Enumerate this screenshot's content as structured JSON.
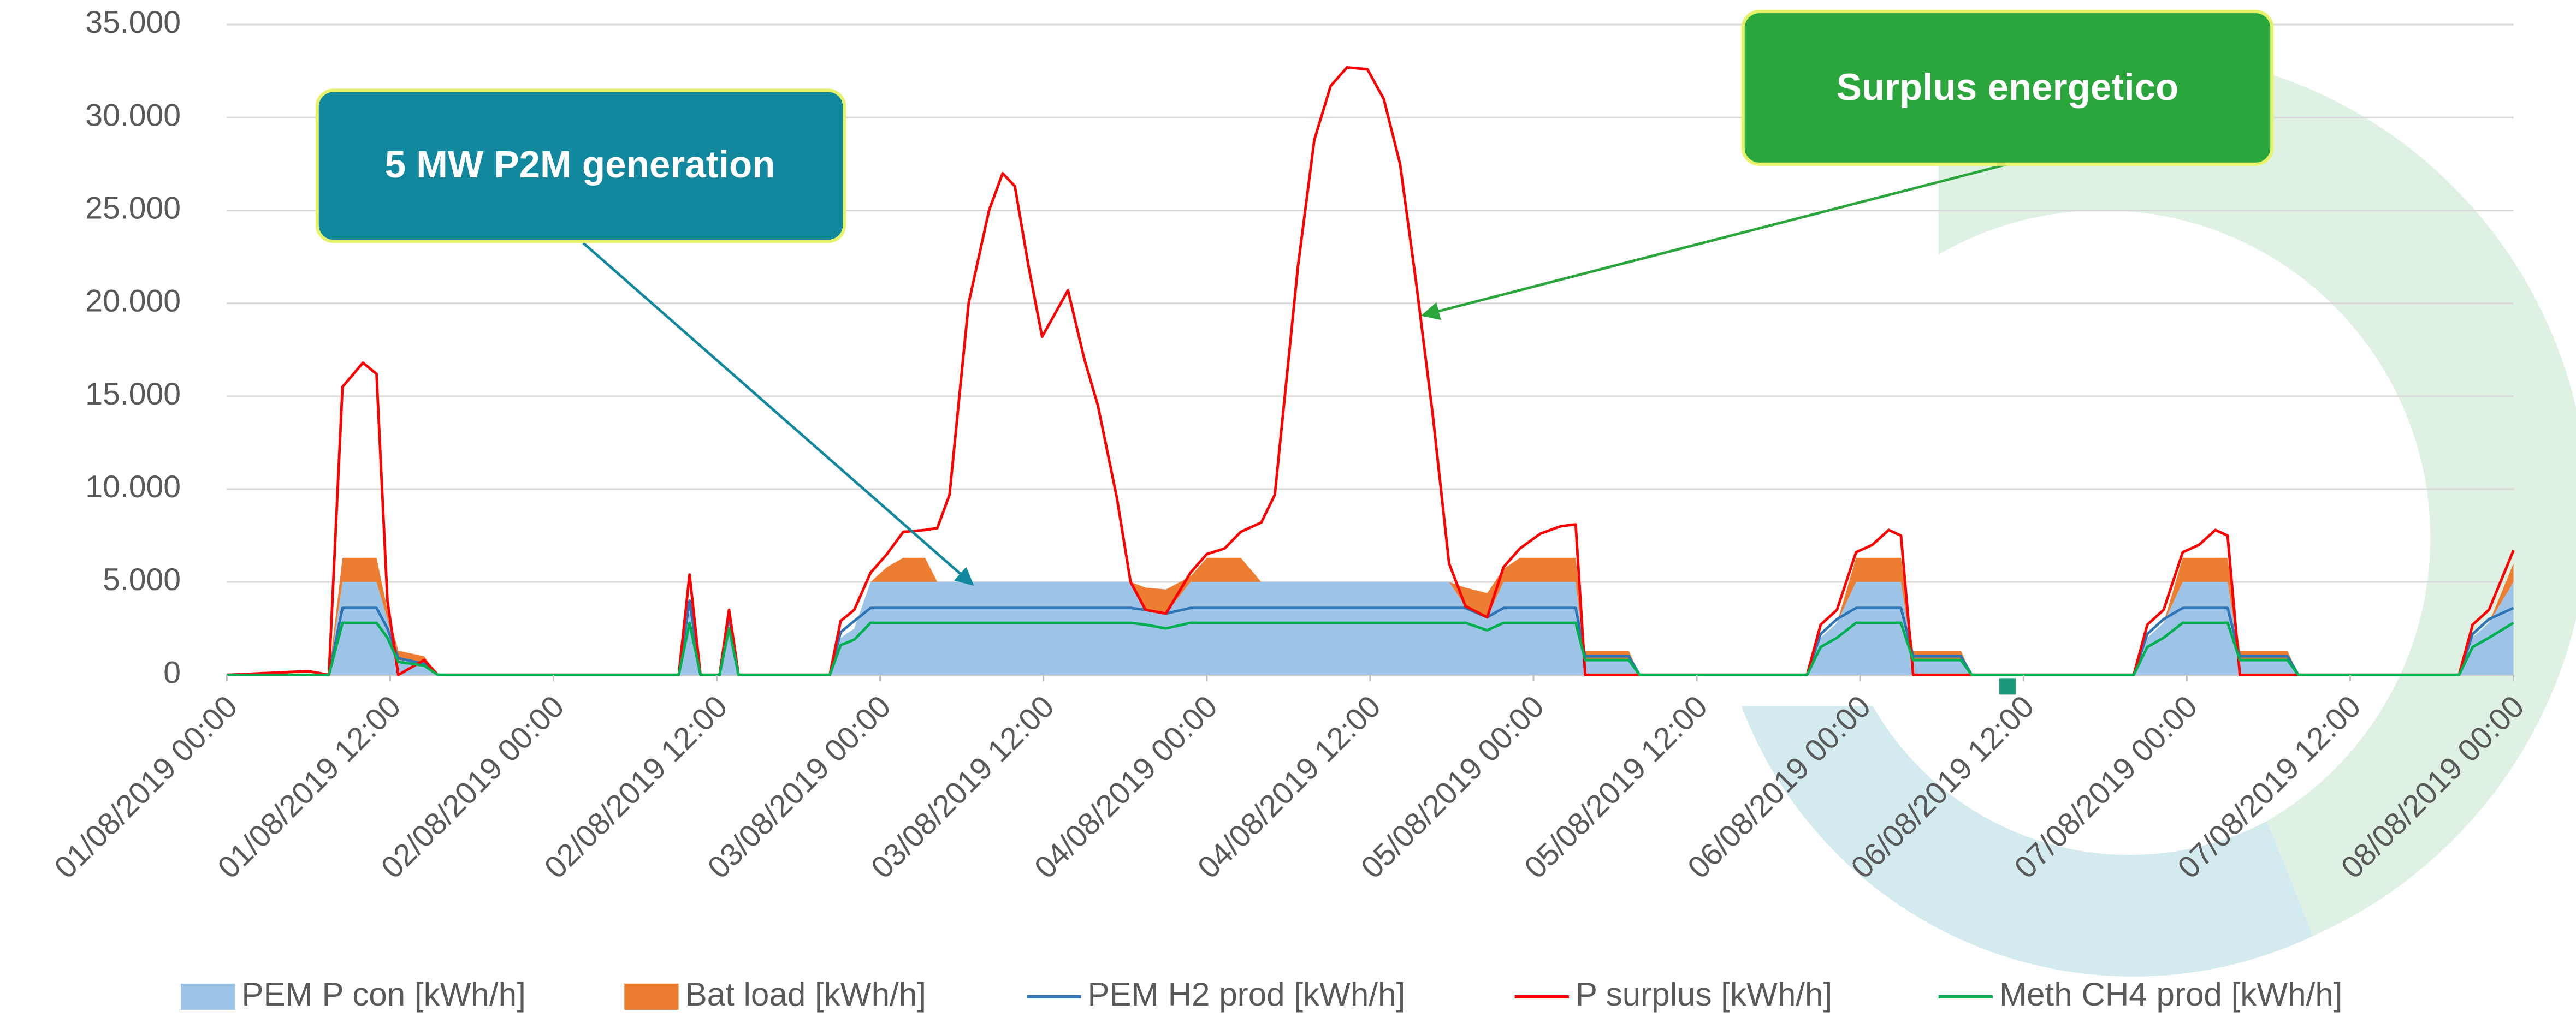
{
  "chart_data": {
    "type": "area",
    "stacked": true,
    "x": [
      0,
      6,
      7.5,
      8.5,
      10,
      11,
      11.8,
      12.6,
      14.5,
      15.5,
      33.2,
      34,
      34.8,
      36.2,
      36.9,
      37.6,
      44.3,
      45.1,
      46.1,
      47.3,
      48.5,
      49.7,
      51.3,
      52.2,
      53.1,
      54.5,
      56,
      57,
      57.9,
      58.9,
      59.9,
      61.8,
      63,
      64,
      65.4,
      66.4,
      67.5,
      69,
      70.8,
      72,
      73.3,
      74.5,
      76,
      77,
      78.7,
      79.9,
      81.1,
      82.3,
      83.8,
      85,
      86.2,
      87.4,
      88.6,
      89.8,
      91,
      92.6,
      93.8,
      95,
      96.5,
      98,
      99.1,
      99.8,
      103,
      103.8,
      116.1,
      117.1,
      118.3,
      119.7,
      120.9,
      122.1,
      123,
      123.9,
      127.4,
      128.2,
      140.1,
      141.1,
      142.3,
      143.7,
      144.9,
      146.1,
      147,
      147.9,
      151.4,
      152.2,
      164,
      165,
      166.2,
      168
    ],
    "xlim": [
      0,
      168
    ],
    "xticks": [
      {
        "value": 0,
        "label": "01/08/2019 00:00"
      },
      {
        "value": 12,
        "label": "01/08/2019 12:00"
      },
      {
        "value": 24,
        "label": "02/08/2019 00:00"
      },
      {
        "value": 36,
        "label": "02/08/2019 12:00"
      },
      {
        "value": 48,
        "label": "03/08/2019 00:00"
      },
      {
        "value": 60,
        "label": "03/08/2019 12:00"
      },
      {
        "value": 72,
        "label": "04/08/2019 00:00"
      },
      {
        "value": 84,
        "label": "04/08/2019 12:00"
      },
      {
        "value": 96,
        "label": "05/08/2019 00:00"
      },
      {
        "value": 108,
        "label": "05/08/2019 12:00"
      },
      {
        "value": 120,
        "label": "06/08/2019 00:00"
      },
      {
        "value": 132,
        "label": "06/08/2019 12:00"
      },
      {
        "value": 144,
        "label": "07/08/2019 00:00"
      },
      {
        "value": 156,
        "label": "07/08/2019 12:00"
      },
      {
        "value": 168,
        "label": "08/08/2019 00:00"
      }
    ],
    "ylim": [
      0,
      35000
    ],
    "yticks": [
      0,
      {
        "value": 5000,
        "label": "5.000"
      },
      {
        "value": 10000,
        "label": "10.000"
      },
      {
        "value": 15000,
        "label": "15.000"
      },
      {
        "value": 20000,
        "label": "20.000"
      },
      {
        "value": 25000,
        "label": "25.000"
      },
      {
        "value": 30000,
        "label": "30.000"
      },
      {
        "value": 35000,
        "label": "35.000"
      }
    ],
    "grid": true,
    "legend": "bottom",
    "annotations": [
      "5 MW P2M generation",
      "Surplus energetico"
    ],
    "series": [
      {
        "name": "PEM P con [kWh/h]",
        "kind": "area",
        "color": "#9dc3e6",
        "values": [
          0,
          0,
          0,
          5000,
          5000,
          5000,
          3000,
          800,
          600,
          0,
          0,
          3500,
          0,
          0,
          3000,
          0,
          0,
          2000,
          2500,
          5000,
          5000,
          5000,
          5000,
          5000,
          5000,
          5000,
          5000,
          5000,
          5000,
          5000,
          5000,
          5000,
          5000,
          5000,
          5000,
          5000,
          3500,
          3300,
          5000,
          5000,
          5000,
          5000,
          5000,
          5000,
          5000,
          5000,
          5000,
          5000,
          5000,
          5000,
          5000,
          5000,
          5000,
          5000,
          3700,
          3100,
          5000,
          5000,
          5000,
          5000,
          5000,
          800,
          800,
          0,
          0,
          2000,
          2800,
          5000,
          5000,
          5000,
          5000,
          800,
          800,
          0,
          0,
          2000,
          2800,
          5000,
          5000,
          5000,
          5000,
          800,
          800,
          0,
          0,
          2000,
          2800,
          5000
        ]
      },
      {
        "name": "Bat load [kWh/h]",
        "kind": "area",
        "color": "#ed7d31",
        "values": [
          0,
          0,
          0,
          1300,
          1300,
          1300,
          500,
          500,
          400,
          0,
          0,
          0,
          0,
          0,
          0,
          0,
          0,
          0,
          0,
          0,
          800,
          1300,
          1300,
          0,
          0,
          0,
          0,
          0,
          0,
          0,
          0,
          0,
          0,
          0,
          0,
          0,
          1200,
          1300,
          300,
          1300,
          1300,
          1300,
          0,
          0,
          0,
          0,
          0,
          0,
          0,
          0,
          0,
          0,
          0,
          0,
          1000,
          1300,
          700,
          1300,
          1300,
          1300,
          1300,
          500,
          500,
          0,
          0,
          0,
          0,
          1300,
          1300,
          1300,
          1300,
          500,
          500,
          0,
          0,
          0,
          0,
          1300,
          1300,
          1300,
          1300,
          500,
          500,
          0,
          0,
          0,
          0,
          1000
        ]
      },
      {
        "name": "PEM H2 prod [kWh/h]",
        "kind": "line",
        "color": "#2e75b6",
        "values": [
          0,
          0,
          0,
          3600,
          3600,
          3600,
          2500,
          900,
          600,
          0,
          0,
          4000,
          0,
          0,
          3200,
          0,
          0,
          2300,
          2900,
          3600,
          3600,
          3600,
          3600,
          3600,
          3600,
          3600,
          3600,
          3600,
          3600,
          3600,
          3600,
          3600,
          3600,
          3600,
          3600,
          3600,
          3500,
          3300,
          3600,
          3600,
          3600,
          3600,
          3600,
          3600,
          3600,
          3600,
          3600,
          3600,
          3600,
          3600,
          3600,
          3600,
          3600,
          3600,
          3600,
          3100,
          3600,
          3600,
          3600,
          3600,
          3600,
          1000,
          1000,
          0,
          0,
          2200,
          3000,
          3600,
          3600,
          3600,
          3600,
          1000,
          1000,
          0,
          0,
          2200,
          3000,
          3600,
          3600,
          3600,
          3600,
          1000,
          1000,
          0,
          0,
          2200,
          3000,
          3600
        ]
      },
      {
        "name": "P surplus [kWh/h]",
        "kind": "line",
        "color": "#ff0000",
        "values": [
          0,
          200,
          0,
          15500,
          16800,
          16200,
          4000,
          0,
          800,
          0,
          0,
          5400,
          0,
          0,
          3500,
          0,
          0,
          2900,
          3500,
          5500,
          6500,
          7700,
          7800,
          7900,
          9700,
          20000,
          25000,
          27000,
          26300,
          22000,
          18200,
          20700,
          17000,
          14500,
          9500,
          5000,
          3500,
          3300,
          5500,
          6500,
          6800,
          7700,
          8200,
          9700,
          22000,
          28800,
          31700,
          32700,
          32600,
          31000,
          27500,
          21000,
          14000,
          6000,
          3700,
          3100,
          5800,
          6800,
          7600,
          8000,
          8100,
          0,
          0,
          0,
          0,
          2700,
          3500,
          6600,
          7000,
          7800,
          7500,
          0,
          0,
          0,
          0,
          2700,
          3500,
          6600,
          7000,
          7800,
          7500,
          0,
          0,
          0,
          0,
          2700,
          3500,
          6700
        ]
      },
      {
        "name": "Meth CH4 prod [kWh/h]",
        "kind": "line",
        "color": "#00b050",
        "values": [
          0,
          0,
          0,
          2800,
          2800,
          2800,
          2000,
          700,
          500,
          0,
          0,
          2800,
          0,
          0,
          2500,
          0,
          0,
          1600,
          1900,
          2800,
          2800,
          2800,
          2800,
          2800,
          2800,
          2800,
          2800,
          2800,
          2800,
          2800,
          2800,
          2800,
          2800,
          2800,
          2800,
          2800,
          2700,
          2500,
          2800,
          2800,
          2800,
          2800,
          2800,
          2800,
          2800,
          2800,
          2800,
          2800,
          2800,
          2800,
          2800,
          2800,
          2800,
          2800,
          2800,
          2400,
          2800,
          2800,
          2800,
          2800,
          2800,
          800,
          800,
          0,
          0,
          1500,
          2000,
          2800,
          2800,
          2800,
          2800,
          800,
          800,
          0,
          0,
          1500,
          2000,
          2800,
          2800,
          2800,
          2800,
          800,
          800,
          0,
          0,
          1500,
          2000,
          2800
        ]
      }
    ]
  }
}
